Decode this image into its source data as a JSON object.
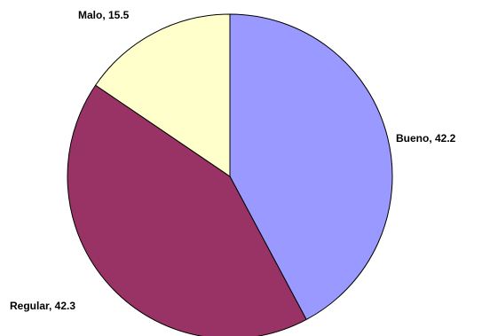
{
  "chart_data": {
    "type": "pie",
    "start_angle_deg": 0,
    "direction": "clockwise",
    "data_label_format": "category, value",
    "slices": [
      {
        "label": "Bueno",
        "value": 42.2,
        "color": "#9999ff",
        "data_label": "Bueno, 42.2"
      },
      {
        "label": "Regular",
        "value": 42.3,
        "color": "#993366",
        "data_label": "Regular, 42.3"
      },
      {
        "label": "Malo",
        "value": 15.5,
        "color": "#ffffcc",
        "data_label": "Malo, 15.5"
      }
    ]
  }
}
